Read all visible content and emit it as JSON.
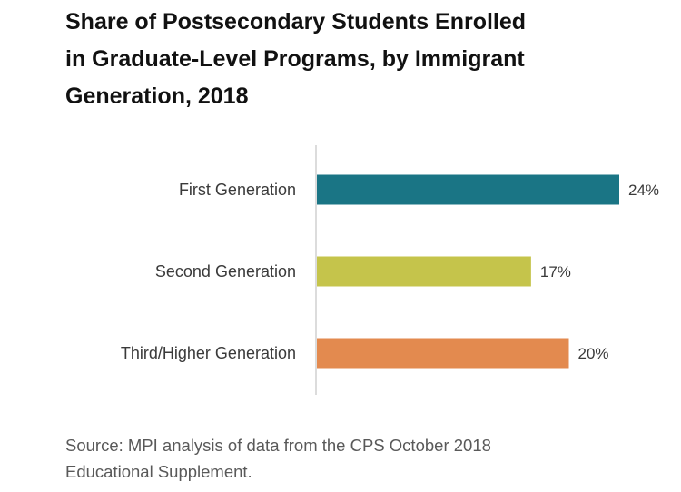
{
  "title_lines": [
    "Share of Postsecondary Students Enrolled",
    "in Graduate-Level Programs, by Immigrant",
    "Generation, 2018"
  ],
  "source_lines": [
    "Source: MPI analysis of data from the CPS October 2018",
    "Educational Supplement."
  ],
  "chart_data": {
    "type": "bar",
    "orientation": "horizontal",
    "title": "Share of Postsecondary Students Enrolled in Graduate-Level Programs, by Immigrant Generation, 2018",
    "categories": [
      "First Generation",
      "Second Generation",
      "Third/Higher Generation"
    ],
    "values": [
      24,
      17,
      20
    ],
    "value_labels": [
      "24%",
      "17%",
      "20%"
    ],
    "unit": "%",
    "colors": [
      "#1a7585",
      "#c5c44b",
      "#e38a4f"
    ],
    "xlim": [
      0,
      24
    ],
    "grid": false,
    "legend": "none"
  }
}
